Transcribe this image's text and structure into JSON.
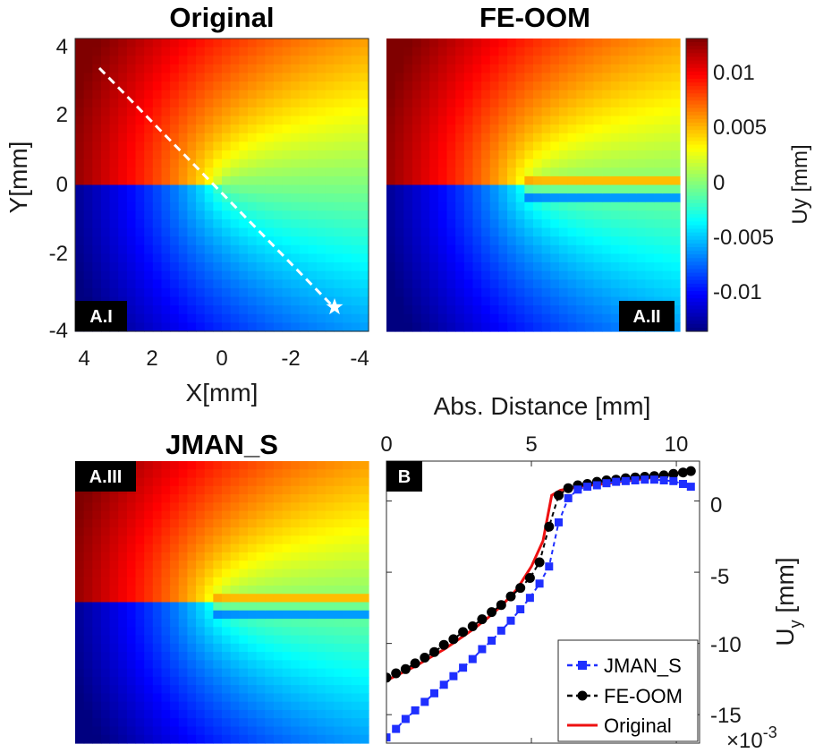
{
  "chart_data": [
    {
      "type": "heatmap",
      "panel": "A.I",
      "title": "Original",
      "xlabel": "X[mm]",
      "ylabel": "Y[mm]",
      "xlim": [
        4,
        -4
      ],
      "ylim": [
        -4,
        4
      ],
      "xticks": [
        "4",
        "2",
        "0",
        "-2",
        "-4"
      ],
      "yticks": [
        "4",
        "2",
        "0",
        "-2",
        "-4"
      ],
      "field": "Uy",
      "crack": "sharp discontinuity along Y = 0 for X < 0",
      "path_line": {
        "from": [
          3.3,
          3.3
        ],
        "to": [
          -3.2,
          -3.4
        ],
        "marker": "star at end"
      }
    },
    {
      "type": "heatmap",
      "panel": "A.II",
      "title": "FE-OOM",
      "field": "Uy",
      "crack": "discontinuity smeared over a thin band near Y = 0 for X < 0"
    },
    {
      "type": "heatmap",
      "panel": "A.III",
      "title": "JMAN_S",
      "field": "Uy",
      "crack": "discontinuity smeared over a thin band near Y = 0 for X < 0"
    },
    {
      "type": "colorbar",
      "label": "Uy [mm]",
      "clim": [
        -0.0125,
        0.0125
      ],
      "ticks": [
        0.01,
        0.005,
        0,
        -0.005,
        -0.01
      ],
      "tick_labels": [
        "0.01",
        "0.005",
        "0",
        "-0.005",
        "-0.01"
      ],
      "colormap": "jet"
    },
    {
      "type": "line",
      "panel": "B",
      "xlabel": "Abs. Distance [mm]",
      "ylabel": "Uy [mm]",
      "ylabel_main": "U",
      "ylabel_sub": "y",
      "ylabel_unit": " [mm]",
      "exponent_label": "×10",
      "exponent_power": "-3",
      "xlim": [
        0,
        10.8
      ],
      "ylim": [
        -17,
        2.8
      ],
      "xticks": [
        "0",
        "5",
        "10"
      ],
      "xtick_values": [
        0,
        5,
        10
      ],
      "yticks": [
        "0",
        "-5",
        "-10",
        "-15"
      ],
      "ytick_values": [
        0,
        -5,
        -10,
        -15
      ],
      "legend_position": "bottom-right",
      "series": [
        {
          "name": "JMAN_S",
          "color": "#1f2fff",
          "style": "dashed-square",
          "x": [
            0,
            0.33,
            0.66,
            0.99,
            1.32,
            1.65,
            1.98,
            2.31,
            2.64,
            2.97,
            3.3,
            3.63,
            3.96,
            4.29,
            4.62,
            4.95,
            5.28,
            5.61,
            5.94,
            6.27,
            6.6,
            6.93,
            7.26,
            7.59,
            7.92,
            8.25,
            8.58,
            8.91,
            9.24,
            9.57,
            9.9,
            10.23,
            10.5
          ],
          "y": [
            -16.6,
            -16.0,
            -15.3,
            -14.7,
            -14.1,
            -13.5,
            -12.9,
            -12.3,
            -11.7,
            -11.1,
            -10.4,
            -9.8,
            -9.1,
            -8.4,
            -7.6,
            -6.8,
            -5.8,
            -4.6,
            -1.5,
            0.2,
            0.8,
            1.0,
            1.1,
            1.25,
            1.35,
            1.4,
            1.45,
            1.5,
            1.5,
            1.45,
            1.4,
            1.2,
            1.0
          ]
        },
        {
          "name": "FE-OOM",
          "color": "#000000",
          "style": "dashed-circle",
          "x": [
            0,
            0.33,
            0.66,
            0.99,
            1.32,
            1.65,
            1.98,
            2.31,
            2.64,
            2.97,
            3.3,
            3.63,
            3.96,
            4.29,
            4.62,
            4.95,
            5.28,
            5.61,
            5.94,
            6.27,
            6.6,
            6.93,
            7.26,
            7.59,
            7.92,
            8.25,
            8.58,
            8.91,
            9.24,
            9.57,
            9.9,
            10.23,
            10.5
          ],
          "y": [
            -12.4,
            -12.1,
            -11.8,
            -11.4,
            -11.0,
            -10.6,
            -10.1,
            -9.7,
            -9.2,
            -8.8,
            -8.3,
            -7.8,
            -7.3,
            -6.7,
            -6.1,
            -5.4,
            -4.3,
            -1.8,
            0.4,
            0.9,
            1.1,
            1.2,
            1.35,
            1.45,
            1.5,
            1.6,
            1.65,
            1.7,
            1.75,
            1.8,
            1.9,
            2.0,
            2.1
          ]
        },
        {
          "name": "Original",
          "color": "#ee1111",
          "style": "solid",
          "x": [
            0,
            0.5,
            1,
            1.5,
            2,
            2.5,
            3,
            3.5,
            4,
            4.5,
            5,
            5.4,
            5.7,
            6,
            6.5,
            7,
            7.5,
            8,
            8.5,
            9,
            9.5,
            10,
            10.5
          ],
          "y": [
            -12.6,
            -12.1,
            -11.6,
            -11.0,
            -10.4,
            -9.7,
            -9.0,
            -8.2,
            -7.3,
            -6.2,
            -4.6,
            -2.8,
            0.4,
            0.75,
            0.95,
            1.1,
            1.2,
            1.35,
            1.45,
            1.6,
            1.75,
            1.95,
            2.15
          ]
        }
      ]
    }
  ],
  "panels": {
    "a1": {
      "title": "Original",
      "tag": "A.I"
    },
    "a2": {
      "title": "FE-OOM",
      "tag": "A.II"
    },
    "a3": {
      "title": "JMAN_S",
      "tag": "A.III"
    },
    "b": {
      "tag": "B"
    }
  },
  "axes_a1": {
    "xlabel": "X[mm]",
    "ylabel": "Y[mm]",
    "xticks": [
      "4",
      "2",
      "0",
      "-2",
      "-4"
    ],
    "yticks": [
      "4",
      "2",
      "0",
      "-2",
      "-4"
    ]
  },
  "colorbar": {
    "label": "Uy [mm]",
    "ticks": [
      "0.01",
      "0.005",
      "0",
      "-0.005",
      "-0.01"
    ]
  },
  "axes_b": {
    "xlabel": "Abs. Distance [mm]",
    "xticks": [
      "0",
      "5",
      "10"
    ],
    "yticks": [
      "0",
      "-5",
      "-10",
      "-15"
    ],
    "ylabel_main": "U",
    "ylabel_sub": "y",
    "ylabel_unit": " [mm]",
    "exponent_label": "×10",
    "exponent_power": "-3"
  },
  "legend": [
    "JMAN_S",
    "FE-OOM",
    "Original"
  ]
}
